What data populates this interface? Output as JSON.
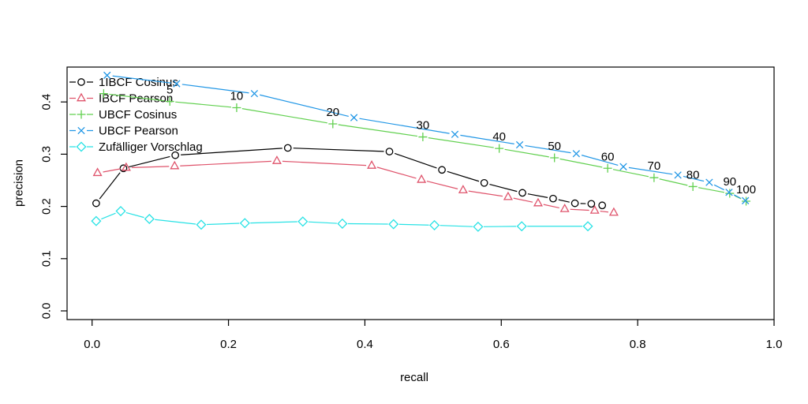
{
  "axes": {
    "xlabel": "recall",
    "ylabel": "precision",
    "x_tick_labels": [
      "0.0",
      "0.2",
      "0.4",
      "0.6",
      "0.8",
      "1.0"
    ],
    "y_tick_labels": [
      "0.0",
      "0.1",
      "0.2",
      "0.3",
      "0.4"
    ]
  },
  "legend": {
    "items": [
      {
        "label": "1IBCF Cosinus",
        "color": "#000000",
        "marker": "circle"
      },
      {
        "label": "IBCF Pearson",
        "color": "#DF536B",
        "marker": "triangle"
      },
      {
        "label": "UBCF Cosinus",
        "color": "#61D04F",
        "marker": "plus"
      },
      {
        "label": "UBCF Pearson",
        "color": "#2297E6",
        "marker": "x"
      },
      {
        "label": "Zufälliger Vorschlag",
        "color": "#28E2E5",
        "marker": "diamond"
      }
    ]
  },
  "chart_data": {
    "type": "line",
    "title": "",
    "xlabel": "recall",
    "ylabel": "precision",
    "xlim": [
      0,
      1.0
    ],
    "ylim": [
      0,
      0.465
    ],
    "grid": false,
    "legend_position": "top-left",
    "x_tick_values": [
      0,
      0.2,
      0.4,
      0.6,
      0.8,
      1.0
    ],
    "y_tick_values": [
      0,
      0.1,
      0.2,
      0.3,
      0.4
    ],
    "series": [
      {
        "name": "1IBCF Cosinus",
        "color": "#000000",
        "marker": "circle",
        "recall": [
          0.006,
          0.046,
          0.122,
          0.287,
          0.436,
          0.513,
          0.575,
          0.631,
          0.676,
          0.708,
          0.732,
          0.748
        ],
        "precision": [
          0.206,
          0.273,
          0.298,
          0.312,
          0.305,
          0.27,
          0.245,
          0.226,
          0.215,
          0.206,
          0.205,
          0.202
        ]
      },
      {
        "name": "IBCF Pearson",
        "color": "#DF536B",
        "marker": "triangle",
        "recall": [
          0.008,
          0.05,
          0.121,
          0.271,
          0.41,
          0.483,
          0.544,
          0.61,
          0.654,
          0.693,
          0.737,
          0.765
        ],
        "precision": [
          0.264,
          0.274,
          0.277,
          0.287,
          0.278,
          0.251,
          0.231,
          0.218,
          0.206,
          0.195,
          0.192,
          0.188
        ]
      },
      {
        "name": "UBCF Cosinus",
        "color": "#61D04F",
        "marker": "plus",
        "recall": [
          0.017,
          0.114,
          0.212,
          0.353,
          0.485,
          0.597,
          0.678,
          0.756,
          0.824,
          0.881,
          0.935,
          0.959
        ],
        "precision": [
          0.416,
          0.401,
          0.389,
          0.358,
          0.333,
          0.311,
          0.293,
          0.273,
          0.255,
          0.238,
          0.225,
          0.21
        ]
      },
      {
        "name": "UBCF Pearson",
        "color": "#2297E6",
        "marker": "x",
        "recall": [
          0.022,
          0.124,
          0.238,
          0.384,
          0.532,
          0.627,
          0.71,
          0.779,
          0.859,
          0.905,
          0.934,
          0.958
        ],
        "precision": [
          0.451,
          0.435,
          0.416,
          0.37,
          0.338,
          0.318,
          0.301,
          0.276,
          0.26,
          0.246,
          0.227,
          0.211
        ]
      },
      {
        "name": "Zufälliger Vorschlag",
        "color": "#28E2E5",
        "marker": "diamond",
        "recall": [
          0.006,
          0.042,
          0.084,
          0.16,
          0.224,
          0.309,
          0.367,
          0.442,
          0.502,
          0.566,
          0.63,
          0.727
        ],
        "precision": [
          0.172,
          0.191,
          0.176,
          0.165,
          0.168,
          0.171,
          0.167,
          0.166,
          0.164,
          0.161,
          0.162,
          0.162
        ]
      }
    ],
    "point_labels": {
      "series": "UBCF Cosinus",
      "labels": [
        "5",
        "10",
        "20",
        "30",
        "40",
        "50",
        "60",
        "70",
        "80",
        "90",
        "100"
      ],
      "point_indices": [
        1,
        2,
        3,
        4,
        5,
        6,
        7,
        8,
        9,
        10,
        11
      ]
    }
  }
}
